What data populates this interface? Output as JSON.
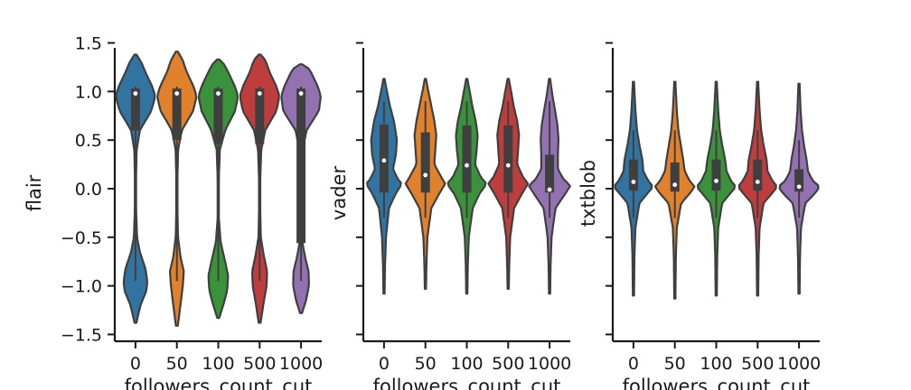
{
  "chart_data": [
    {
      "type": "violin",
      "xlabel": "followers_count_cut",
      "ylabel": "flair",
      "categories": [
        "0",
        "50",
        "100",
        "500",
        "1000"
      ],
      "yticks": [
        -1.5,
        -1.0,
        -0.5,
        0.0,
        0.5,
        1.0,
        1.5
      ],
      "ytick_labels": [
        "−1.5",
        "−1.0",
        "−0.5",
        "0.0",
        "0.5",
        "1.0",
        "1.5"
      ],
      "show_ytick_labels": true,
      "ylim": [
        -1.55,
        1.55
      ],
      "violins": [
        {
          "min": -1.38,
          "max": 1.38,
          "q1": 0.6,
          "median": 0.98,
          "q3": 1.03,
          "whisker_lo": -0.95,
          "whisker_hi": 1.05,
          "density": [
            [
              -1.38,
              0.05
            ],
            [
              -1.2,
              0.25
            ],
            [
              -1.05,
              0.55
            ],
            [
              -0.95,
              0.6
            ],
            [
              -0.82,
              0.5
            ],
            [
              -0.65,
              0.22
            ],
            [
              -0.5,
              0.08
            ],
            [
              -0.2,
              0.03
            ],
            [
              0.1,
              0.03
            ],
            [
              0.4,
              0.06
            ],
            [
              0.6,
              0.22
            ],
            [
              0.8,
              0.8
            ],
            [
              0.95,
              1.0
            ],
            [
              1.05,
              0.85
            ],
            [
              1.2,
              0.5
            ],
            [
              1.3,
              0.3
            ],
            [
              1.38,
              0.05
            ]
          ]
        },
        {
          "min": -1.41,
          "max": 1.41,
          "q1": 0.5,
          "median": 0.98,
          "q3": 1.03,
          "whisker_lo": -0.95,
          "whisker_hi": 1.05,
          "density": [
            [
              -1.41,
              0.05
            ],
            [
              -1.2,
              0.18
            ],
            [
              -1.0,
              0.3
            ],
            [
              -0.85,
              0.35
            ],
            [
              -0.7,
              0.18
            ],
            [
              -0.5,
              0.06
            ],
            [
              -0.2,
              0.03
            ],
            [
              0.1,
              0.03
            ],
            [
              0.4,
              0.06
            ],
            [
              0.6,
              0.25
            ],
            [
              0.8,
              0.82
            ],
            [
              0.95,
              1.0
            ],
            [
              1.05,
              0.85
            ],
            [
              1.2,
              0.5
            ],
            [
              1.32,
              0.3
            ],
            [
              1.41,
              0.05
            ]
          ]
        },
        {
          "min": -1.33,
          "max": 1.33,
          "q1": 0.46,
          "median": 0.98,
          "q3": 1.03,
          "whisker_lo": -0.95,
          "whisker_hi": 1.05,
          "density": [
            [
              -1.33,
              0.05
            ],
            [
              -1.2,
              0.25
            ],
            [
              -1.05,
              0.45
            ],
            [
              -0.9,
              0.5
            ],
            [
              -0.75,
              0.35
            ],
            [
              -0.55,
              0.12
            ],
            [
              -0.3,
              0.03
            ],
            [
              0.1,
              0.03
            ],
            [
              0.4,
              0.08
            ],
            [
              0.6,
              0.35
            ],
            [
              0.8,
              0.85
            ],
            [
              0.95,
              1.0
            ],
            [
              1.05,
              0.85
            ],
            [
              1.2,
              0.5
            ],
            [
              1.28,
              0.3
            ],
            [
              1.33,
              0.05
            ]
          ]
        },
        {
          "min": -1.38,
          "max": 1.38,
          "q1": 0.46,
          "median": 0.98,
          "q3": 1.03,
          "whisker_lo": -0.95,
          "whisker_hi": 1.05,
          "density": [
            [
              -1.38,
              0.05
            ],
            [
              -1.2,
              0.18
            ],
            [
              -1.0,
              0.35
            ],
            [
              -0.85,
              0.38
            ],
            [
              -0.7,
              0.22
            ],
            [
              -0.5,
              0.06
            ],
            [
              -0.2,
              0.03
            ],
            [
              0.1,
              0.03
            ],
            [
              0.4,
              0.08
            ],
            [
              0.6,
              0.28
            ],
            [
              0.8,
              0.85
            ],
            [
              0.95,
              1.0
            ],
            [
              1.05,
              0.85
            ],
            [
              1.2,
              0.5
            ],
            [
              1.32,
              0.3
            ],
            [
              1.38,
              0.05
            ]
          ]
        },
        {
          "min": -1.28,
          "max": 1.28,
          "q1": -0.56,
          "median": 0.98,
          "q3": 1.03,
          "whisker_lo": -0.95,
          "whisker_hi": 1.05,
          "density": [
            [
              -1.28,
              0.05
            ],
            [
              -1.15,
              0.25
            ],
            [
              -1.0,
              0.4
            ],
            [
              -0.85,
              0.38
            ],
            [
              -0.7,
              0.2
            ],
            [
              -0.55,
              0.07
            ],
            [
              -0.3,
              0.04
            ],
            [
              0.1,
              0.04
            ],
            [
              0.4,
              0.08
            ],
            [
              0.6,
              0.28
            ],
            [
              0.8,
              0.9
            ],
            [
              0.95,
              1.0
            ],
            [
              1.05,
              0.85
            ],
            [
              1.2,
              0.5
            ],
            [
              1.26,
              0.3
            ],
            [
              1.28,
              0.05
            ]
          ]
        }
      ]
    },
    {
      "type": "violin",
      "xlabel": "followers_count_cut",
      "ylabel": "vader",
      "categories": [
        "0",
        "50",
        "100",
        "500",
        "1000"
      ],
      "yticks": [
        -1.5,
        -1.0,
        -0.5,
        0.0,
        0.5,
        1.0,
        1.5
      ],
      "show_ytick_labels": false,
      "ylim": [
        -1.55,
        1.55
      ],
      "violins": [
        {
          "min": -1.08,
          "max": 1.13,
          "q1": -0.04,
          "median": 0.29,
          "q3": 0.66,
          "whisker_lo": -0.3,
          "whisker_hi": 0.9,
          "density": [
            [
              -1.08,
              0.03
            ],
            [
              -0.8,
              0.05
            ],
            [
              -0.5,
              0.1
            ],
            [
              -0.2,
              0.25
            ],
            [
              -0.05,
              0.6
            ],
            [
              0.05,
              0.9
            ],
            [
              0.1,
              0.7
            ],
            [
              0.2,
              0.45
            ],
            [
              0.35,
              0.6
            ],
            [
              0.5,
              0.65
            ],
            [
              0.7,
              0.5
            ],
            [
              0.85,
              0.3
            ],
            [
              1.0,
              0.15
            ],
            [
              1.13,
              0.03
            ]
          ]
        },
        {
          "min": -1.03,
          "max": 1.13,
          "q1": -0.04,
          "median": 0.14,
          "q3": 0.58,
          "whisker_lo": -0.3,
          "whisker_hi": 0.9,
          "density": [
            [
              -1.03,
              0.03
            ],
            [
              -0.8,
              0.05
            ],
            [
              -0.5,
              0.1
            ],
            [
              -0.2,
              0.3
            ],
            [
              -0.05,
              0.7
            ],
            [
              0.05,
              1.0
            ],
            [
              0.12,
              0.8
            ],
            [
              0.25,
              0.45
            ],
            [
              0.4,
              0.5
            ],
            [
              0.55,
              0.55
            ],
            [
              0.7,
              0.45
            ],
            [
              0.85,
              0.3
            ],
            [
              1.0,
              0.15
            ],
            [
              1.13,
              0.03
            ]
          ]
        },
        {
          "min": -1.08,
          "max": 1.13,
          "q1": -0.04,
          "median": 0.24,
          "q3": 0.65,
          "whisker_lo": -0.3,
          "whisker_hi": 0.9,
          "density": [
            [
              -1.08,
              0.03
            ],
            [
              -0.8,
              0.05
            ],
            [
              -0.5,
              0.1
            ],
            [
              -0.2,
              0.3
            ],
            [
              -0.05,
              0.65
            ],
            [
              0.05,
              1.0
            ],
            [
              0.12,
              0.7
            ],
            [
              0.25,
              0.42
            ],
            [
              0.4,
              0.5
            ],
            [
              0.55,
              0.55
            ],
            [
              0.7,
              0.45
            ],
            [
              0.85,
              0.28
            ],
            [
              1.0,
              0.15
            ],
            [
              1.13,
              0.03
            ]
          ]
        },
        {
          "min": -1.03,
          "max": 1.13,
          "q1": -0.04,
          "median": 0.24,
          "q3": 0.65,
          "whisker_lo": -0.3,
          "whisker_hi": 0.9,
          "density": [
            [
              -1.03,
              0.03
            ],
            [
              -0.8,
              0.05
            ],
            [
              -0.5,
              0.1
            ],
            [
              -0.2,
              0.3
            ],
            [
              -0.05,
              0.7
            ],
            [
              0.05,
              1.0
            ],
            [
              0.12,
              0.75
            ],
            [
              0.25,
              0.45
            ],
            [
              0.4,
              0.5
            ],
            [
              0.55,
              0.55
            ],
            [
              0.7,
              0.45
            ],
            [
              0.85,
              0.28
            ],
            [
              1.0,
              0.15
            ],
            [
              1.13,
              0.03
            ]
          ]
        },
        {
          "min": -1.08,
          "max": 1.13,
          "q1": -0.04,
          "median": -0.01,
          "q3": 0.35,
          "whisker_lo": -0.3,
          "whisker_hi": 0.9,
          "density": [
            [
              -1.08,
              0.03
            ],
            [
              -0.8,
              0.05
            ],
            [
              -0.5,
              0.1
            ],
            [
              -0.2,
              0.3
            ],
            [
              -0.05,
              0.8
            ],
            [
              0.03,
              1.05
            ],
            [
              0.1,
              0.7
            ],
            [
              0.2,
              0.42
            ],
            [
              0.35,
              0.42
            ],
            [
              0.5,
              0.45
            ],
            [
              0.65,
              0.4
            ],
            [
              0.8,
              0.28
            ],
            [
              0.95,
              0.15
            ],
            [
              1.13,
              0.03
            ]
          ]
        }
      ]
    },
    {
      "type": "violin",
      "xlabel": "followers_count_cut",
      "ylabel": "txtblob",
      "categories": [
        "0",
        "50",
        "100",
        "500",
        "1000"
      ],
      "yticks": [
        -1.5,
        -1.0,
        -0.5,
        0.0,
        0.5,
        1.0,
        1.5
      ],
      "show_ytick_labels": false,
      "ylim": [
        -1.55,
        1.55
      ],
      "violins": [
        {
          "min": -1.1,
          "max": 1.1,
          "q1": -0.02,
          "median": 0.07,
          "q3": 0.3,
          "whisker_lo": -0.3,
          "whisker_hi": 0.6,
          "density": [
            [
              -1.1,
              0.03
            ],
            [
              -0.7,
              0.05
            ],
            [
              -0.4,
              0.1
            ],
            [
              -0.15,
              0.3
            ],
            [
              -0.05,
              0.7
            ],
            [
              0.02,
              1.0
            ],
            [
              0.08,
              0.75
            ],
            [
              0.18,
              0.5
            ],
            [
              0.3,
              0.45
            ],
            [
              0.45,
              0.3
            ],
            [
              0.6,
              0.18
            ],
            [
              0.8,
              0.1
            ],
            [
              1.1,
              0.03
            ]
          ]
        },
        {
          "min": -1.13,
          "max": 1.1,
          "q1": -0.03,
          "median": 0.04,
          "q3": 0.27,
          "whisker_lo": -0.3,
          "whisker_hi": 0.6,
          "density": [
            [
              -1.13,
              0.03
            ],
            [
              -0.7,
              0.05
            ],
            [
              -0.4,
              0.1
            ],
            [
              -0.15,
              0.32
            ],
            [
              -0.05,
              0.75
            ],
            [
              0.02,
              1.0
            ],
            [
              0.08,
              0.75
            ],
            [
              0.18,
              0.5
            ],
            [
              0.3,
              0.42
            ],
            [
              0.45,
              0.3
            ],
            [
              0.6,
              0.18
            ],
            [
              0.8,
              0.1
            ],
            [
              1.1,
              0.03
            ]
          ]
        },
        {
          "min": -1.1,
          "max": 1.1,
          "q1": -0.02,
          "median": 0.08,
          "q3": 0.3,
          "whisker_lo": -0.3,
          "whisker_hi": 0.6,
          "density": [
            [
              -1.1,
              0.03
            ],
            [
              -0.7,
              0.05
            ],
            [
              -0.4,
              0.1
            ],
            [
              -0.15,
              0.3
            ],
            [
              -0.05,
              0.7
            ],
            [
              0.02,
              1.0
            ],
            [
              0.08,
              0.75
            ],
            [
              0.18,
              0.52
            ],
            [
              0.3,
              0.45
            ],
            [
              0.45,
              0.3
            ],
            [
              0.6,
              0.18
            ],
            [
              0.8,
              0.1
            ],
            [
              1.1,
              0.03
            ]
          ]
        },
        {
          "min": -1.1,
          "max": 1.1,
          "q1": -0.02,
          "median": 0.07,
          "q3": 0.3,
          "whisker_lo": -0.3,
          "whisker_hi": 0.6,
          "density": [
            [
              -1.1,
              0.03
            ],
            [
              -0.7,
              0.05
            ],
            [
              -0.4,
              0.1
            ],
            [
              -0.15,
              0.3
            ],
            [
              -0.05,
              0.72
            ],
            [
              0.02,
              1.0
            ],
            [
              0.08,
              0.75
            ],
            [
              0.18,
              0.5
            ],
            [
              0.3,
              0.45
            ],
            [
              0.45,
              0.3
            ],
            [
              0.6,
              0.18
            ],
            [
              0.8,
              0.1
            ],
            [
              1.1,
              0.03
            ]
          ]
        },
        {
          "min": -1.08,
          "max": 1.08,
          "q1": -0.03,
          "median": 0.02,
          "q3": 0.2,
          "whisker_lo": -0.3,
          "whisker_hi": 0.5,
          "density": [
            [
              -1.08,
              0.03
            ],
            [
              -0.7,
              0.05
            ],
            [
              -0.4,
              0.1
            ],
            [
              -0.15,
              0.32
            ],
            [
              -0.05,
              0.8
            ],
            [
              0.02,
              1.05
            ],
            [
              0.08,
              0.7
            ],
            [
              0.18,
              0.45
            ],
            [
              0.3,
              0.38
            ],
            [
              0.45,
              0.25
            ],
            [
              0.6,
              0.15
            ],
            [
              0.8,
              0.08
            ],
            [
              1.08,
              0.03
            ]
          ]
        }
      ]
    }
  ],
  "colors": [
    "#3274a1",
    "#e1812c",
    "#3a923a",
    "#c03d3e",
    "#9372b2"
  ],
  "line_color": "#3f3f3f"
}
